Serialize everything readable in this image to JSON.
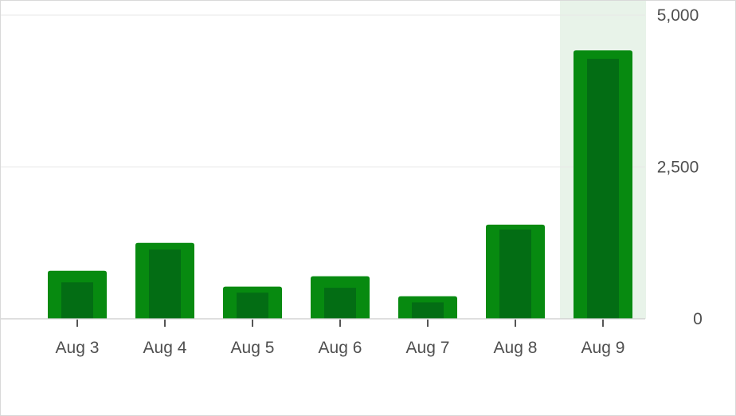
{
  "chart_data": {
    "type": "bar",
    "categories": [
      "Aug 3",
      "Aug 4",
      "Aug 5",
      "Aug 6",
      "Aug 7",
      "Aug 8",
      "Aug 9"
    ],
    "series": [
      {
        "values": [
          790,
          1250,
          530,
          700,
          370,
          1550,
          4420
        ]
      },
      {
        "values": [
          600,
          1140,
          430,
          510,
          270,
          1470,
          4280
        ]
      }
    ],
    "yticks": [
      "5,000",
      "2,500",
      "0"
    ],
    "ylim": [
      0,
      5000
    ],
    "highlighted_category": "Aug 9",
    "grid": true,
    "colors": {
      "bar": "#078a10",
      "bar_inner": "#036d14",
      "highlight_bg": "#e8f3e9",
      "grid": "#e7e7e7",
      "axis": "#cccccc",
      "text": "#4f4f4f"
    }
  }
}
